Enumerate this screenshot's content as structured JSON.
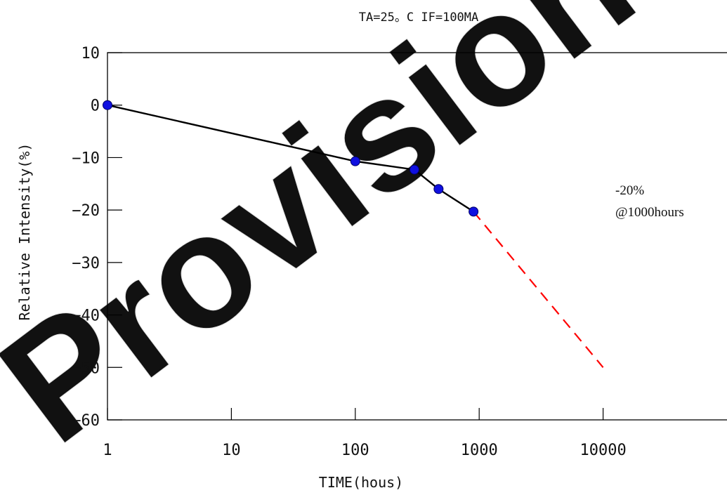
{
  "chart_data": {
    "type": "line",
    "title": "TA=25。C IF=100MA",
    "xlabel": "TIME(hous)",
    "ylabel": "Relative Intensity(%)",
    "x_scale": "log",
    "xlim": [
      1,
      100000
    ],
    "ylim": [
      -60,
      10
    ],
    "x_ticks": [
      1,
      10,
      100,
      1000,
      10000
    ],
    "x_tick_labels": [
      "1",
      "10",
      "100",
      "1000",
      "10000"
    ],
    "y_ticks": [
      10,
      0,
      -10,
      -20,
      -30,
      -40,
      -50,
      -60
    ],
    "y_tick_labels": [
      "10",
      "0",
      "−10",
      "−20",
      "−30",
      "−40",
      "−50",
      "−60"
    ],
    "grid": false,
    "series": [
      {
        "color": "#000000",
        "marker_color": "#1010e0",
        "x": [
          1,
          100,
          300,
          470,
          900
        ],
        "y": [
          0,
          -10.7,
          -12.3,
          -16,
          -20.3
        ]
      },
      {
        "style": "dashed",
        "color": "#ff0000",
        "x": [
          900,
          10000
        ],
        "y": [
          -20.3,
          -50
        ]
      }
    ],
    "annotations": [
      {
        "text": "-20%",
        "x": 8000,
        "y": -16
      },
      {
        "text": "@1000hours",
        "x": 8000,
        "y": -20
      }
    ]
  },
  "watermark": {
    "text": "Provisional",
    "color": "#d0d0d0"
  }
}
